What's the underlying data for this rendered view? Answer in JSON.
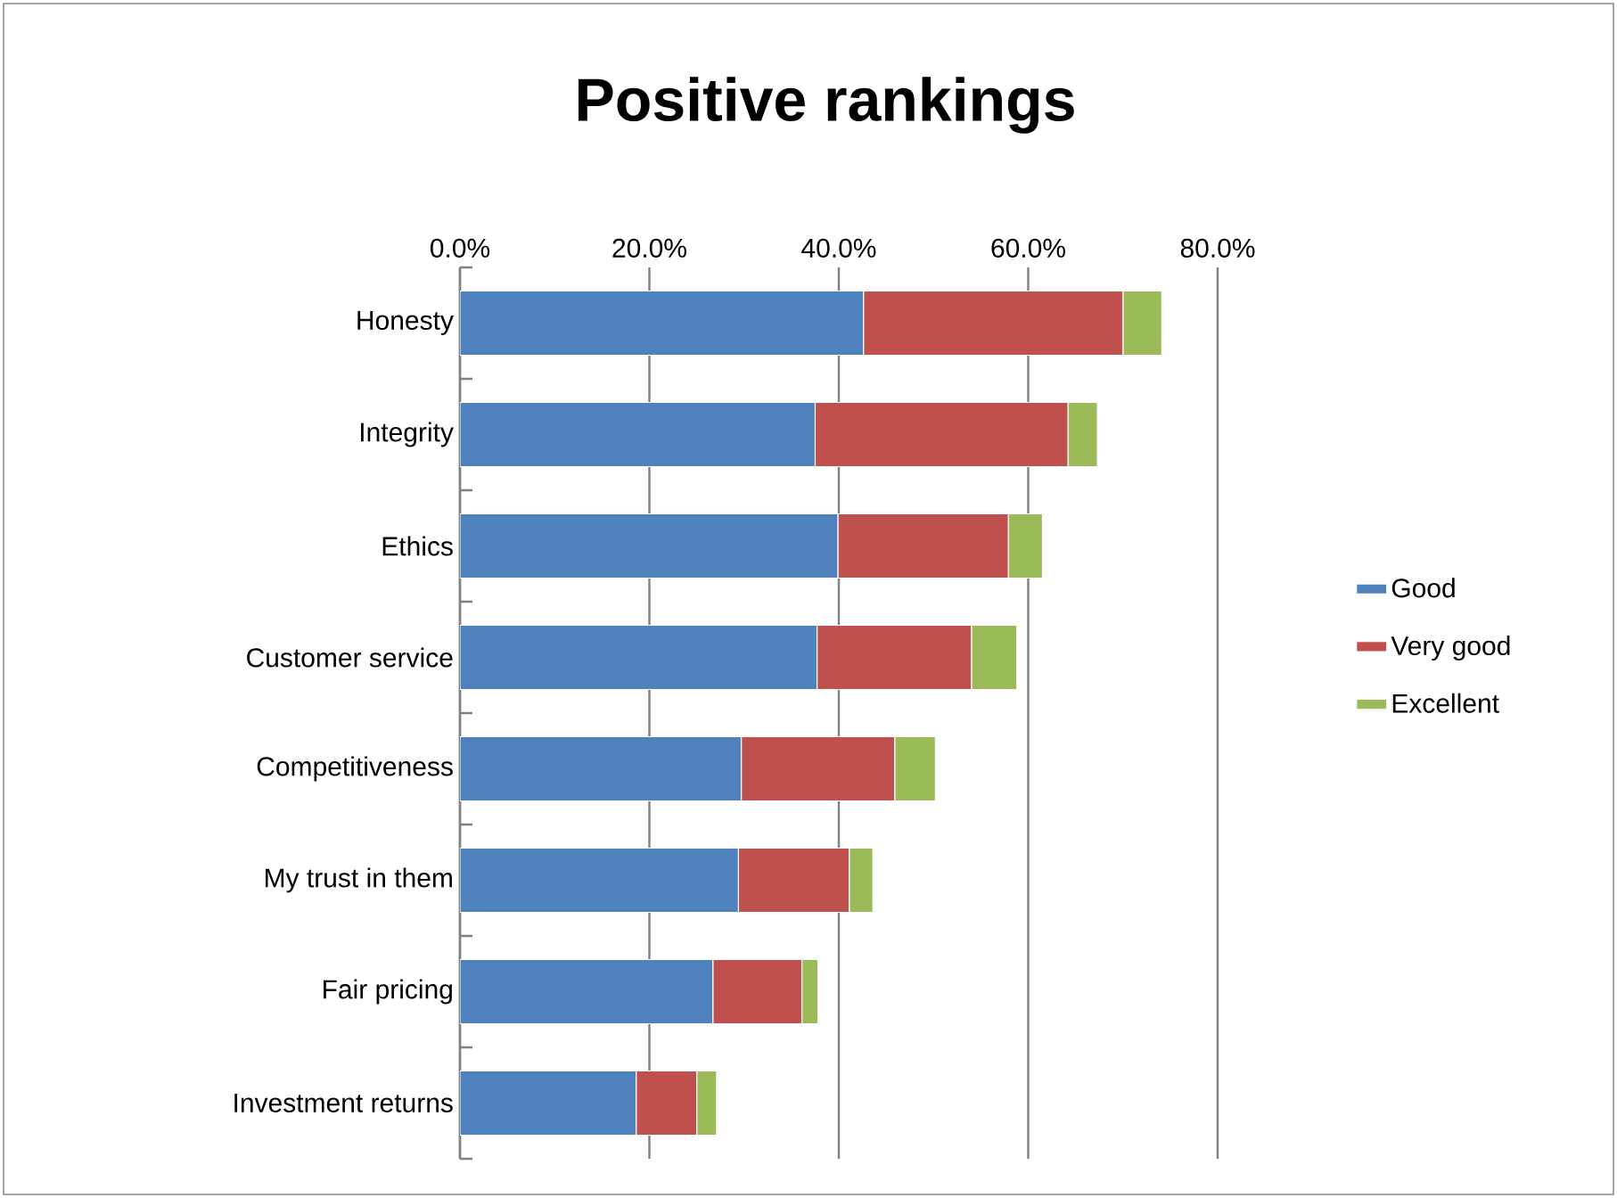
{
  "chart_data": {
    "type": "bar",
    "orientation": "horizontal",
    "stacked": true,
    "title": "Positive rankings",
    "categories": [
      "Honesty",
      "Integrity",
      "Ethics",
      "Customer service",
      "Competitiveness",
      "My trust in them",
      "Fair pricing",
      "Investment returns"
    ],
    "series": [
      {
        "name": "Good",
        "color": "#4f81bd",
        "values": [
          42.6,
          37.5,
          39.9,
          37.7,
          29.7,
          29.4,
          26.7,
          18.6
        ]
      },
      {
        "name": "Very good",
        "color": "#c0504d",
        "values": [
          27.4,
          26.7,
          18.0,
          16.3,
          16.2,
          11.7,
          9.4,
          6.4
        ]
      },
      {
        "name": "Excellent",
        "color": "#9bbb59",
        "values": [
          4.1,
          3.1,
          3.6,
          4.8,
          4.3,
          2.5,
          1.7,
          2.1
        ]
      }
    ],
    "xlim": [
      0,
      80
    ],
    "xticks": [
      {
        "value": 0,
        "label": "0.0%"
      },
      {
        "value": 20,
        "label": "20.0%"
      },
      {
        "value": 40,
        "label": "40.0%"
      },
      {
        "value": 60,
        "label": "60.0%"
      },
      {
        "value": 80,
        "label": "80.0%"
      }
    ],
    "grid": "x",
    "legend": "right"
  }
}
